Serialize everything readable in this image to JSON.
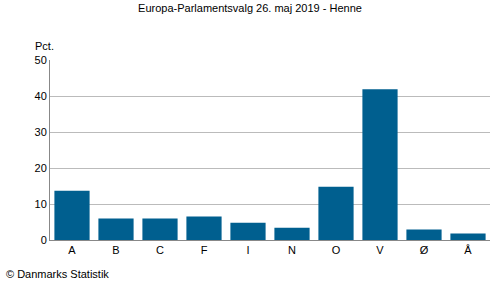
{
  "chart_data": {
    "type": "bar",
    "title": "Europa-Parlamentsvalg 26. maj 2019 - Henne",
    "ylabel": "Pct.",
    "categories": [
      "A",
      "B",
      "C",
      "F",
      "I",
      "N",
      "O",
      "V",
      "Ø",
      "Å"
    ],
    "values": [
      13.7,
      6.0,
      6.0,
      6.5,
      4.8,
      3.4,
      14.8,
      41.9,
      2.9,
      1.8
    ],
    "color": "#005f8f",
    "ylim": [
      0,
      50
    ],
    "yticks": [
      0,
      10,
      20,
      30,
      40,
      50
    ],
    "grid": true,
    "annotations": [
      "© Danmarks Statistik"
    ]
  }
}
